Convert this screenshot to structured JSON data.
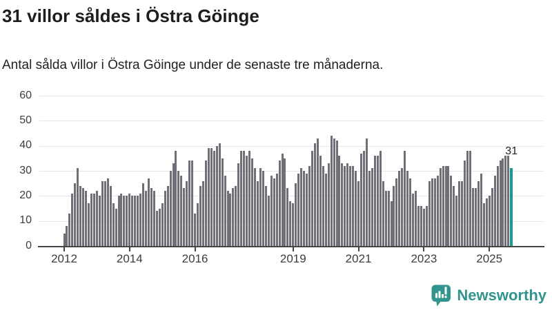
{
  "header": {
    "title": "31 villor såldes i Östra Göinge",
    "subtitle": "Antal sålda villor i Östra Göinge under de senaste tre månaderna."
  },
  "branding": {
    "name": "Newsworthy",
    "icon": "newsworthy-speech-bubble-bar-chart-icon",
    "color": "#31948e"
  },
  "colors": {
    "bar": "#6f6f78",
    "accent": "#159a94",
    "grid": "#e5e5e5",
    "axis": "#454545",
    "text": "#1d1d1d",
    "tick_label": "#3d3d3d"
  },
  "chart_data": {
    "type": "bar",
    "title": "31 villor såldes i Östra Göinge",
    "subtitle": "Antal sålda villor i Östra Göinge under de senaste tre månaderna.",
    "frequency": "monthly",
    "x_start": "2012-01",
    "x_end": "2025-09",
    "ylim": [
      0,
      60
    ],
    "yticks": [
      0,
      10,
      20,
      30,
      40,
      50,
      60
    ],
    "grid": true,
    "xticks": [
      {
        "label": "2012",
        "month_index": 0
      },
      {
        "label": "2014",
        "month_index": 24
      },
      {
        "label": "2016",
        "month_index": 48
      },
      {
        "label": "2019",
        "month_index": 84
      },
      {
        "label": "2021",
        "month_index": 108
      },
      {
        "label": "2023",
        "month_index": 132
      },
      {
        "label": "2025",
        "month_index": 156
      }
    ],
    "series": [
      {
        "year": 2012,
        "values": [
          5,
          8,
          13,
          21,
          25,
          31,
          24,
          23,
          22,
          17,
          21,
          21
        ]
      },
      {
        "year": 2013,
        "values": [
          22,
          20,
          26,
          26,
          27,
          24,
          17,
          15,
          20,
          21,
          20,
          20
        ]
      },
      {
        "year": 2014,
        "values": [
          21,
          20,
          20,
          20,
          21,
          25,
          22,
          27,
          23,
          22,
          14,
          15
        ]
      },
      {
        "year": 2015,
        "values": [
          17,
          22,
          24,
          30,
          33,
          38,
          30,
          28,
          23,
          26,
          34,
          34
        ]
      },
      {
        "year": 2016,
        "values": [
          13,
          17,
          24,
          26,
          34,
          39,
          39,
          38,
          40,
          41,
          35,
          28
        ]
      },
      {
        "year": 2017,
        "values": [
          22,
          21,
          23,
          24,
          33,
          38,
          38,
          36,
          38,
          35,
          31,
          26
        ]
      },
      {
        "year": 2018,
        "values": [
          31,
          30,
          24,
          20,
          28,
          27,
          29,
          34,
          37,
          35,
          23,
          18
        ]
      },
      {
        "year": 2019,
        "values": [
          17,
          25,
          29,
          31,
          30,
          29,
          32,
          38,
          41,
          43,
          36,
          32
        ]
      },
      {
        "year": 2020,
        "values": [
          29,
          33,
          44,
          43,
          42,
          36,
          33,
          32,
          33,
          32,
          32,
          30
        ]
      },
      {
        "year": 2021,
        "values": [
          26,
          37,
          38,
          43,
          30,
          31,
          36,
          36,
          38,
          26,
          22,
          22
        ]
      },
      {
        "year": 2022,
        "values": [
          18,
          24,
          27,
          30,
          31,
          38,
          30,
          27,
          21,
          22,
          16,
          16
        ]
      },
      {
        "year": 2023,
        "values": [
          15,
          16,
          26,
          27,
          27,
          28,
          31,
          32,
          32,
          32,
          28,
          24
        ]
      },
      {
        "year": 2024,
        "values": [
          20,
          26,
          26,
          34,
          38,
          38,
          23,
          23,
          26,
          29,
          17,
          19
        ]
      },
      {
        "year": 2025,
        "values": [
          20,
          23,
          28,
          32,
          34,
          35,
          36,
          36,
          31
        ]
      }
    ],
    "highlight": {
      "month": "2025-09",
      "value": 31,
      "label": "31"
    },
    "legend": null
  }
}
